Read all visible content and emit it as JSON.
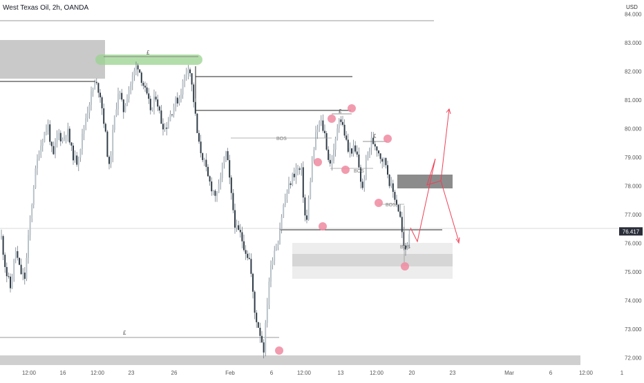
{
  "title": "West Texas Oil, 2h, OANDA",
  "currency": "USD",
  "chart_data": {
    "type": "candlestick",
    "instrument": "West Texas Oil",
    "timeframe": "2h",
    "source": "OANDA",
    "current_price": 76.417,
    "current_price_label": "76.417",
    "ylim": [
      71.8,
      84.3
    ],
    "y_ticks": [
      72,
      73,
      74,
      75,
      76,
      77,
      78,
      79,
      80,
      81,
      82,
      83,
      84
    ],
    "y_tick_labels": [
      "72.000",
      "73.000",
      "74.000",
      "75.000",
      "76.000",
      "77.000",
      "78.000",
      "79.000",
      "80.000",
      "81.000",
      "82.000",
      "83.000",
      "84.000"
    ],
    "x_ticks": [
      "12:00",
      "16",
      "12:00",
      "23",
      "26",
      "Feb",
      "6",
      "12:00",
      "13",
      "12:00",
      "20",
      "23",
      "Mar",
      "6",
      "12:00",
      "1"
    ],
    "close_path": [
      76.2,
      75.0,
      74.4,
      75.8,
      75.0,
      74.8,
      76.6,
      78.2,
      79.2,
      79.8,
      80.1,
      78.9,
      79.9,
      79.6,
      80.0,
      79.2,
      78.8,
      79.5,
      80.4,
      81.1,
      81.6,
      81.3,
      80.1,
      78.6,
      80.2,
      81.4,
      80.6,
      81.3,
      81.8,
      82.3,
      81.7,
      81.1,
      80.6,
      81.2,
      80.3,
      80.0,
      80.5,
      80.9,
      81.1,
      81.8,
      82.3,
      81.0,
      79.5,
      79.0,
      78.3,
      77.9,
      77.6,
      78.6,
      79.2,
      77.7,
      76.5,
      76.3,
      75.8,
      75.4,
      73.6,
      73.0,
      72.3,
      74.6,
      75.7,
      76.1,
      77.2,
      77.8,
      78.3,
      78.6,
      78.5,
      76.5,
      78.4,
      79.7,
      80.3,
      79.8,
      78.7,
      79.2,
      80.5,
      80.0,
      79.2,
      79.3,
      79.0,
      77.8,
      79.1,
      79.6,
      79.4,
      79.0,
      78.8,
      78.0,
      77.6,
      77.0,
      75.6,
      76.4
    ],
    "annotations": {
      "bos_labels": [
        "BOS",
        "BOS",
        "BOS",
        "BOS"
      ],
      "pound_labels": [
        "£",
        "£",
        "£",
        "£"
      ]
    }
  }
}
